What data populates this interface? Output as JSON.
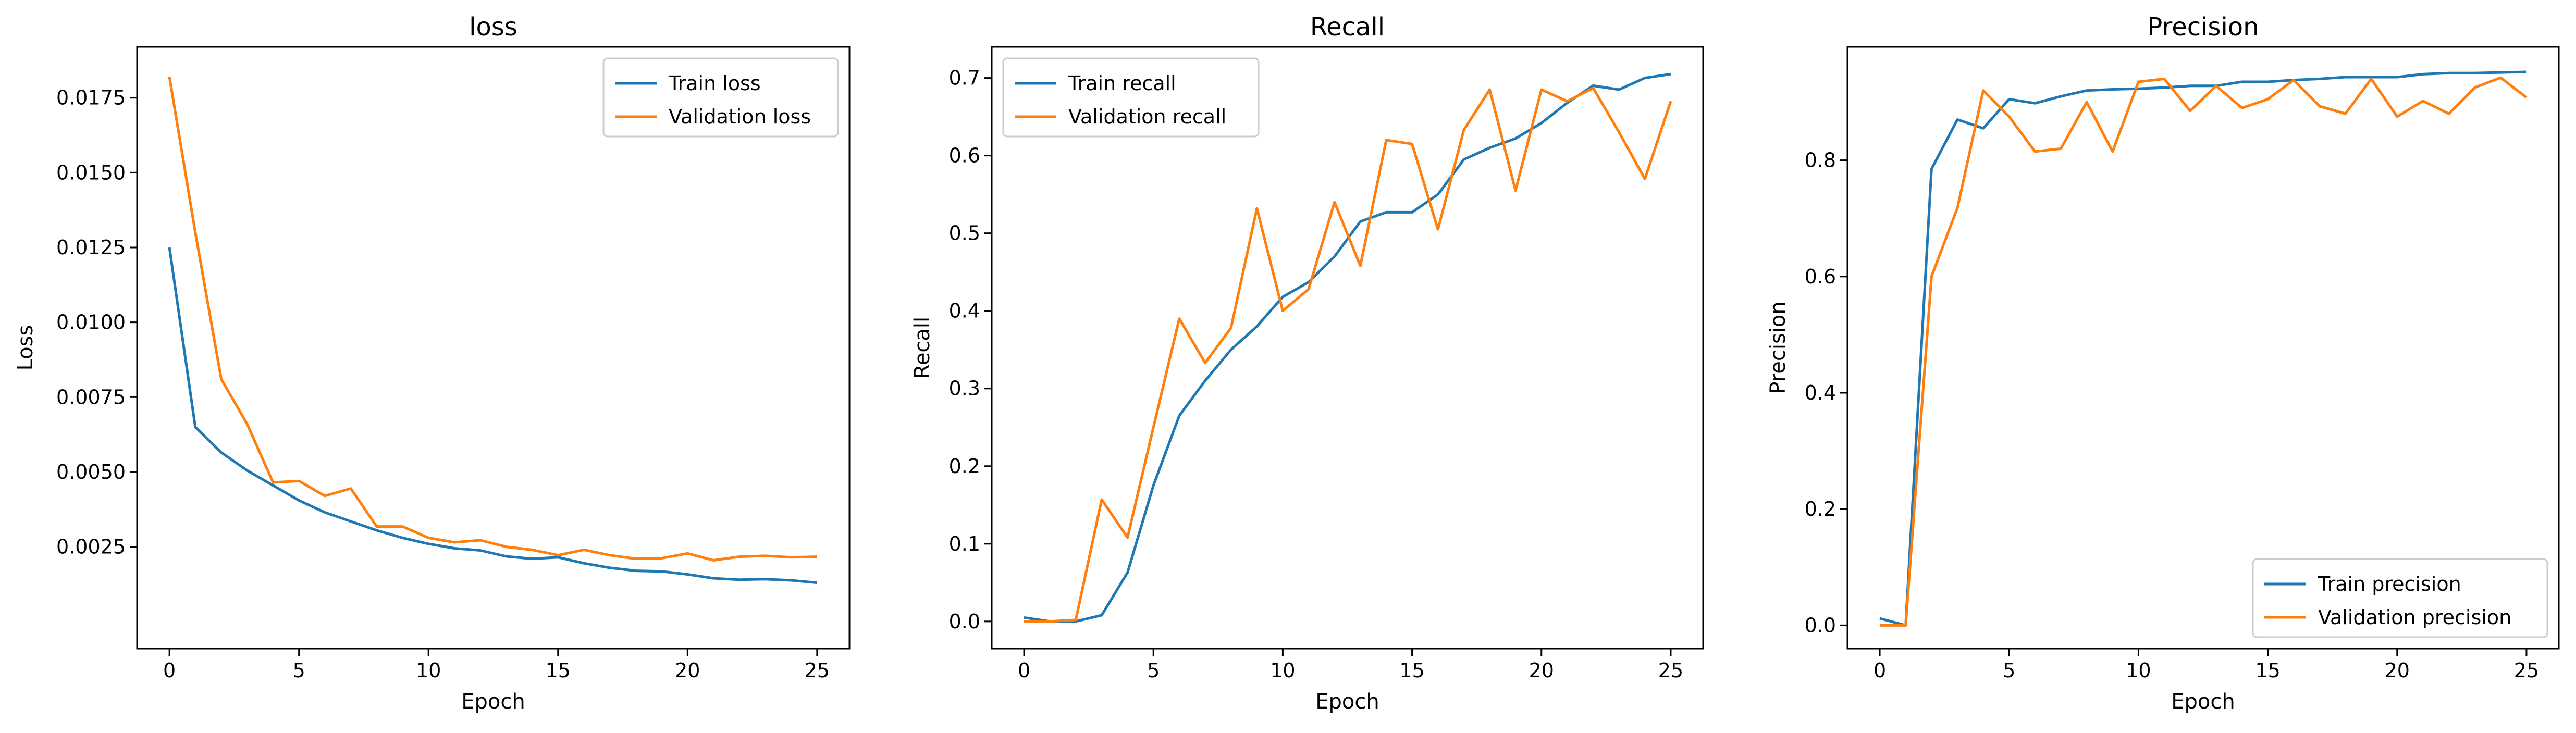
{
  "colors": {
    "train": "#1f77b4",
    "validation": "#ff7f0e",
    "axes": "#000000",
    "background": "#ffffff"
  },
  "chart_data": [
    {
      "type": "line",
      "title": "loss",
      "xlabel": "Epoch",
      "ylabel": "Loss",
      "xlim": [
        -1.25,
        26.25
      ],
      "ylim": [
        -0.0009,
        0.0192
      ],
      "xticks": [
        0,
        5,
        10,
        15,
        20,
        25
      ],
      "xtick_labels": [
        "0",
        "5",
        "10",
        "15",
        "20",
        "25"
      ],
      "yticks": [
        0.0025,
        0.005,
        0.0075,
        0.01,
        0.0125,
        0.015,
        0.0175
      ],
      "ytick_labels": [
        "0.0025",
        "0.0050",
        "0.0075",
        "0.0100",
        "0.0125",
        "0.0150",
        "0.0175"
      ],
      "grid": false,
      "legend_position": "top-right",
      "x": [
        0,
        1,
        2,
        3,
        4,
        5,
        6,
        7,
        8,
        9,
        10,
        11,
        12,
        13,
        14,
        15,
        16,
        17,
        18,
        19,
        20,
        21,
        22,
        23,
        24,
        25
      ],
      "series": [
        {
          "name": "Train loss",
          "color": "#1f77b4",
          "values": [
            0.0125,
            0.0065,
            0.00565,
            0.00505,
            0.00455,
            0.00405,
            0.00365,
            0.00335,
            0.00305,
            0.0028,
            0.0026,
            0.00245,
            0.00238,
            0.00218,
            0.0021,
            0.00215,
            0.00195,
            0.0018,
            0.0017,
            0.00168,
            0.00158,
            0.00145,
            0.0014,
            0.00142,
            0.00138,
            0.0013
          ]
        },
        {
          "name": "Validation loss",
          "color": "#ff7f0e",
          "values": [
            0.0182,
            0.013,
            0.0081,
            0.0066,
            0.00465,
            0.0047,
            0.0042,
            0.00445,
            0.00318,
            0.00318,
            0.0028,
            0.00265,
            0.00272,
            0.0025,
            0.0024,
            0.00222,
            0.0024,
            0.00222,
            0.0021,
            0.00212,
            0.00228,
            0.00205,
            0.00217,
            0.0022,
            0.00215,
            0.00217
          ]
        }
      ]
    },
    {
      "type": "line",
      "title": "Recall",
      "xlabel": "Epoch",
      "ylabel": "Recall",
      "xlim": [
        -1.25,
        26.25
      ],
      "ylim": [
        -0.035,
        0.74
      ],
      "xticks": [
        0,
        5,
        10,
        15,
        20,
        25
      ],
      "xtick_labels": [
        "0",
        "5",
        "10",
        "15",
        "20",
        "25"
      ],
      "yticks": [
        0,
        0.1,
        0.2,
        0.3,
        0.4,
        0.5,
        0.6,
        0.7
      ],
      "ytick_labels": [
        "0.0",
        "0.1",
        "0.2",
        "0.3",
        "0.4",
        "0.5",
        "0.6",
        "0.7"
      ],
      "grid": false,
      "legend_position": "top-left",
      "x": [
        0,
        1,
        2,
        3,
        4,
        5,
        6,
        7,
        8,
        9,
        10,
        11,
        12,
        13,
        14,
        15,
        16,
        17,
        18,
        19,
        20,
        21,
        22,
        23,
        24,
        25
      ],
      "series": [
        {
          "name": "Train recall",
          "color": "#1f77b4",
          "values": [
            0.005,
            0.0,
            0.0,
            0.008,
            0.063,
            0.175,
            0.265,
            0.31,
            0.35,
            0.38,
            0.418,
            0.437,
            0.47,
            0.515,
            0.527,
            0.527,
            0.55,
            0.595,
            0.61,
            0.622,
            0.642,
            0.668,
            0.69,
            0.685,
            0.7,
            0.705
          ]
        },
        {
          "name": "Validation recall",
          "color": "#ff7f0e",
          "values": [
            0.0,
            0.0,
            0.002,
            0.157,
            0.108,
            0.25,
            0.39,
            0.333,
            0.378,
            0.532,
            0.4,
            0.428,
            0.54,
            0.458,
            0.62,
            0.615,
            0.505,
            0.633,
            0.685,
            0.555,
            0.685,
            0.67,
            0.687,
            0.63,
            0.57,
            0.67
          ]
        }
      ]
    },
    {
      "type": "line",
      "title": "Precision",
      "xlabel": "Epoch",
      "ylabel": "Precision",
      "xlim": [
        -1.25,
        26.25
      ],
      "ylim": [
        -0.04,
        0.995
      ],
      "xticks": [
        0,
        5,
        10,
        15,
        20,
        25
      ],
      "xtick_labels": [
        "0",
        "5",
        "10",
        "15",
        "20",
        "25"
      ],
      "yticks": [
        0,
        0.2,
        0.4,
        0.6,
        0.8
      ],
      "ytick_labels": [
        "0.0",
        "0.2",
        "0.4",
        "0.6",
        "0.8"
      ],
      "grid": false,
      "legend_position": "bottom-right",
      "x": [
        0,
        1,
        2,
        3,
        4,
        5,
        6,
        7,
        8,
        9,
        10,
        11,
        12,
        13,
        14,
        15,
        16,
        17,
        18,
        19,
        20,
        21,
        22,
        23,
        24,
        25
      ],
      "series": [
        {
          "name": "Train precision",
          "color": "#1f77b4",
          "values": [
            0.012,
            0.0,
            0.785,
            0.87,
            0.855,
            0.905,
            0.898,
            0.91,
            0.92,
            0.922,
            0.923,
            0.925,
            0.928,
            0.928,
            0.935,
            0.935,
            0.938,
            0.94,
            0.943,
            0.943,
            0.943,
            0.948,
            0.95,
            0.95,
            0.951,
            0.952
          ]
        },
        {
          "name": "Validation precision",
          "color": "#ff7f0e",
          "values": [
            0.0,
            0.0,
            0.6,
            0.718,
            0.92,
            0.875,
            0.815,
            0.82,
            0.9,
            0.815,
            0.935,
            0.94,
            0.885,
            0.928,
            0.89,
            0.905,
            0.938,
            0.893,
            0.88,
            0.94,
            0.875,
            0.902,
            0.88,
            0.925,
            0.942,
            0.908
          ]
        }
      ]
    }
  ]
}
